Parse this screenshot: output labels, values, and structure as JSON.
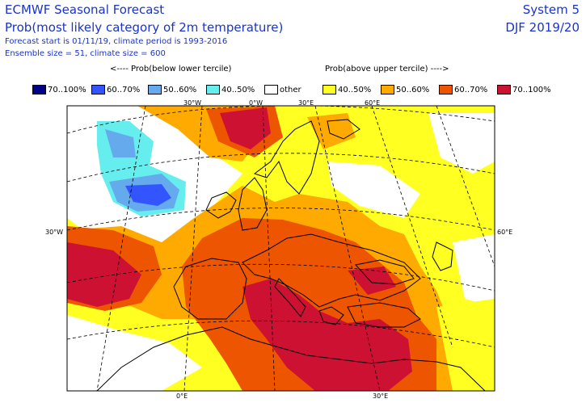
{
  "header": {
    "title": "ECMWF Seasonal Forecast",
    "subtitle": "Prob(most likely category of 2m temperature)",
    "forecast_info": "Forecast start is 01/11/19, climate period is 1993-2016",
    "ensemble_info": "Ensemble size = 51, climate size = 600",
    "system": "System 5",
    "season": "DJF 2019/20"
  },
  "legend": {
    "below_label": "<---- Prob(below lower tercile)",
    "above_label": "Prob(above upper tercile) ---->",
    "items": [
      {
        "label": "70..100%",
        "color": "#00008b"
      },
      {
        "label": "60..70%",
        "color": "#3355ff"
      },
      {
        "label": "50..60%",
        "color": "#66aaee"
      },
      {
        "label": "40..50%",
        "color": "#66eeee"
      },
      {
        "label": "other",
        "color": "#ffffff"
      },
      {
        "label": "40..50%",
        "color": "#ffff22"
      },
      {
        "label": "50..60%",
        "color": "#ffaa00"
      },
      {
        "label": "60..70%",
        "color": "#ee5500"
      },
      {
        "label": "70..100%",
        "color": "#cc1133"
      }
    ]
  },
  "map": {
    "top_ticks": [
      "30°W",
      "0°W",
      "30°E",
      "60°E"
    ],
    "left_ticks": [
      "30°W"
    ],
    "right_ticks": [
      "60°E"
    ],
    "bottom_ticks": [
      "0°E",
      "30°E"
    ]
  }
}
